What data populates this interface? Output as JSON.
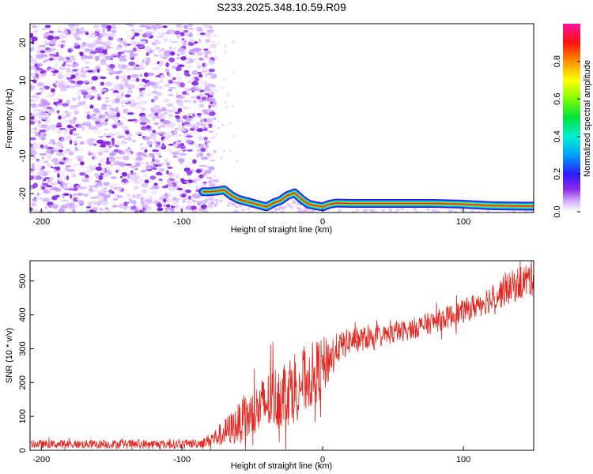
{
  "figure": {
    "title": "S233.2025.348.10.59.R09"
  },
  "colors": {
    "snr_line": "#e3261f",
    "spectrogram_noise_light": "#ecdcff",
    "spectrogram_noise_dark": "#8a2be2",
    "background": "#ffffff"
  },
  "chart_data": [
    {
      "type": "heatmap",
      "name": "spectrogram",
      "xlabel": "Height of straight line (km)",
      "ylabel": "Frequency (Hz)",
      "xlim": [
        -208,
        150
      ],
      "ylim": [
        -25,
        25
      ],
      "xticks": [
        -200,
        -100,
        0,
        100
      ],
      "xtick_labels": [
        "-200",
        "-100",
        "0",
        "100"
      ],
      "yticks": [
        -20,
        -10,
        0,
        10,
        20
      ],
      "ytick_labels": [
        "-20",
        "-10",
        "0",
        "10",
        "20"
      ],
      "grid": false,
      "colorbar": {
        "label": "Normalized spectral amplitude",
        "range": [
          0,
          1
        ],
        "ticks": [
          0.0,
          0.2,
          0.4,
          0.6,
          0.8
        ],
        "tick_labels": [
          "0.0",
          "0.2",
          "0.4",
          "0.6",
          "0.8"
        ],
        "colormap": "rainbow (white-purple-blue-cyan-green-yellow-red-magenta)"
      },
      "noise_region": {
        "x_range": [
          -208,
          -80
        ],
        "y_range": [
          -25,
          25
        ],
        "amplitude": "low (0.0-0.25)"
      },
      "signal_trace": {
        "x": [
          -85,
          -80,
          -75,
          -70,
          -65,
          -60,
          -55,
          -50,
          -45,
          -40,
          -35,
          -30,
          -25,
          -20,
          -15,
          -10,
          -5,
          0,
          5,
          10,
          20,
          40,
          60,
          80,
          100,
          120,
          140,
          150
        ],
        "y": [
          -19.5,
          -19.5,
          -19.3,
          -19.0,
          -20.5,
          -21.5,
          -22.0,
          -22.5,
          -23.0,
          -23.5,
          -22.5,
          -21.8,
          -20.5,
          -19.8,
          -21.5,
          -22.8,
          -23.2,
          -23.5,
          -22.8,
          -22.5,
          -22.6,
          -22.6,
          -22.6,
          -22.6,
          -22.8,
          -23.2,
          -23.3,
          -23.3
        ],
        "amplitude": "high (0.8-1.0) core, falloff to 0.2 at edges"
      }
    },
    {
      "type": "line",
      "name": "snr",
      "xlabel": "Height of straight line (km)",
      "ylabel": "SNR (10 * v/v)",
      "xlim": [
        -208,
        150
      ],
      "ylim": [
        0,
        560
      ],
      "xticks": [
        -200,
        -100,
        0,
        100
      ],
      "xtick_labels": [
        "-200",
        "-100",
        "0",
        "100"
      ],
      "yticks": [
        0,
        100,
        200,
        300,
        400,
        500
      ],
      "ytick_labels": [
        "0",
        "100",
        "200",
        "300",
        "400",
        "500"
      ],
      "grid": false,
      "trend": {
        "x": [
          -208,
          -150,
          -100,
          -85,
          -75,
          -65,
          -50,
          -40,
          -30,
          -20,
          -10,
          0,
          10,
          20,
          40,
          60,
          80,
          100,
          120,
          140,
          150
        ],
        "y": [
          18,
          18,
          18,
          22,
          40,
          65,
          105,
          140,
          165,
          190,
          215,
          245,
          300,
          325,
          335,
          355,
          380,
          410,
          450,
          495,
          510
        ]
      },
      "noise_envelope": {
        "x": [
          -208,
          -85,
          -75,
          -60,
          -40,
          -20,
          0,
          10,
          40,
          100,
          150
        ],
        "amplitude": [
          12,
          14,
          30,
          60,
          90,
          110,
          90,
          45,
          30,
          35,
          55
        ]
      }
    }
  ]
}
